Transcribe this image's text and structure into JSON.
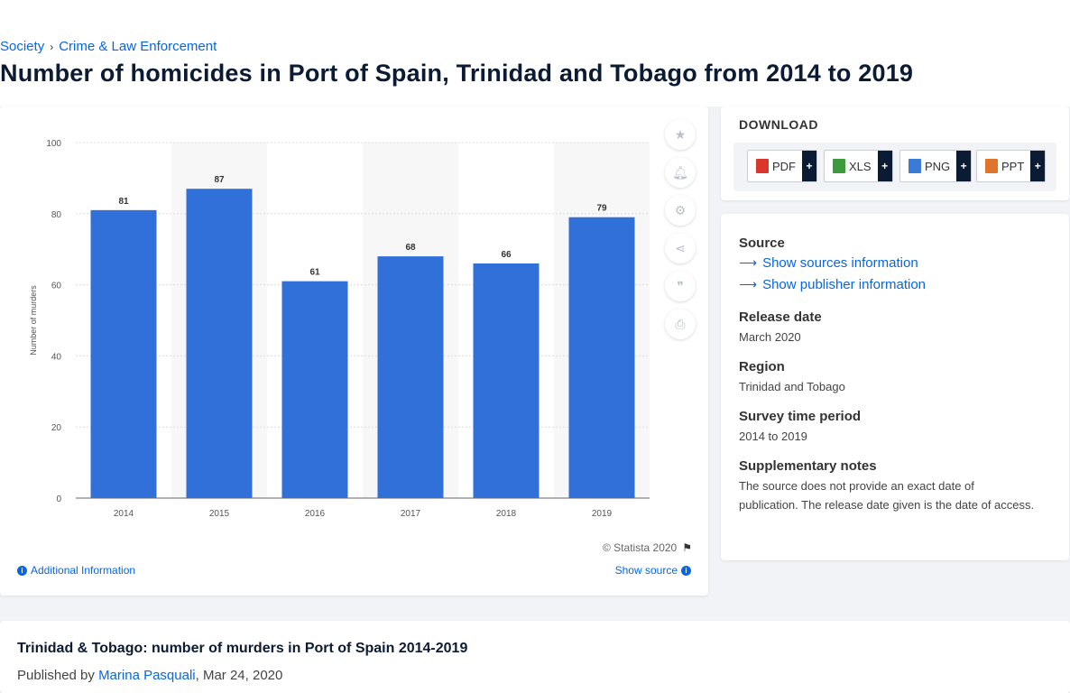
{
  "breadcrumb": {
    "items": [
      "Society",
      "Crime & Law Enforcement"
    ],
    "separator": "›"
  },
  "page_title": "Number of homicides in Port of Spain, Trinidad and Tobago from 2014 to 2019",
  "chart": {
    "copyright": "© Statista 2020",
    "additional_info": "Additional Information",
    "show_source": "Show source",
    "tools": [
      "star-icon",
      "bell-icon",
      "gear-icon",
      "share-icon",
      "quote-icon",
      "print-icon"
    ]
  },
  "chart_data": {
    "type": "bar",
    "categories": [
      "2014",
      "2015",
      "2016",
      "2017",
      "2018",
      "2019"
    ],
    "values": [
      81,
      87,
      61,
      68,
      66,
      79
    ],
    "title": "",
    "xlabel": "",
    "ylabel": "Number of murders",
    "ylim": [
      0,
      100
    ],
    "yticks": [
      0,
      20,
      40,
      60,
      80,
      100
    ],
    "grid": true,
    "bar_color": "#3170d9"
  },
  "download": {
    "title": "DOWNLOAD",
    "buttons": [
      {
        "label": "PDF",
        "color": "#d9372b"
      },
      {
        "label": "XLS",
        "color": "#3c9b3c"
      },
      {
        "label": "PNG",
        "color": "#3a7bd5"
      },
      {
        "label": "PPT",
        "color": "#e0742b"
      }
    ],
    "plus": "+"
  },
  "meta": {
    "source_heading": "Source",
    "show_sources": "Show sources information",
    "show_publisher": "Show publisher information",
    "release_heading": "Release date",
    "release_value": "March 2020",
    "region_heading": "Region",
    "region_value": "Trinidad and Tobago",
    "survey_heading": "Survey time period",
    "survey_value": "2014 to 2019",
    "notes_heading": "Supplementary notes",
    "notes_value": "The source does not provide an exact date of publication. The release date given is the date of access."
  },
  "bottom": {
    "title": "Trinidad & Tobago: number of murders in Port of Spain 2014-2019",
    "published_prefix": "Published by",
    "author": "Marina Pasquali",
    "date": ", Mar 24, 2020"
  }
}
